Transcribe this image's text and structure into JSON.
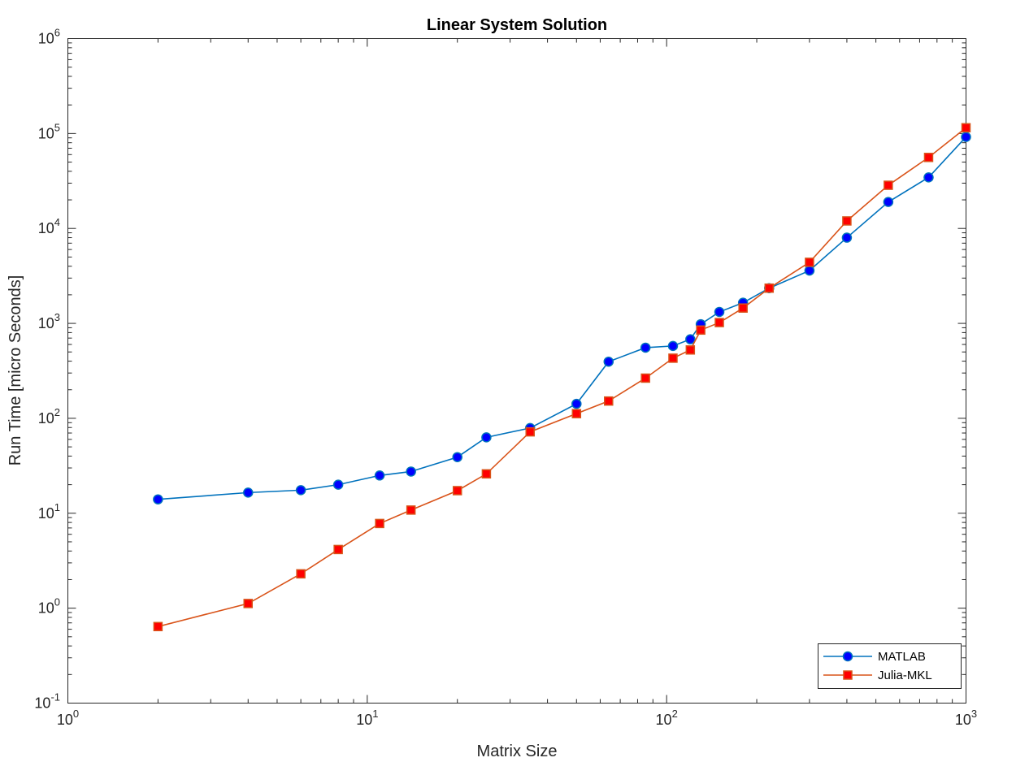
{
  "chart_data": {
    "type": "line",
    "title": "Linear System Solution",
    "xlabel": "Matrix Size",
    "ylabel": "Run Time  [micro Seconds]",
    "xscale": "log",
    "yscale": "log",
    "xlim": [
      1,
      1000
    ],
    "ylim": [
      0.1,
      1000000
    ],
    "x_ticks": [
      {
        "base": "10",
        "exp": "0",
        "value": 1
      },
      {
        "base": "10",
        "exp": "1",
        "value": 10
      },
      {
        "base": "10",
        "exp": "2",
        "value": 100
      },
      {
        "base": "10",
        "exp": "3",
        "value": 1000
      }
    ],
    "y_ticks": [
      {
        "base": "10",
        "exp": "-1",
        "value": 0.1
      },
      {
        "base": "10",
        "exp": "0",
        "value": 1
      },
      {
        "base": "10",
        "exp": "1",
        "value": 10
      },
      {
        "base": "10",
        "exp": "2",
        "value": 100
      },
      {
        "base": "10",
        "exp": "3",
        "value": 1000
      },
      {
        "base": "10",
        "exp": "4",
        "value": 10000
      },
      {
        "base": "10",
        "exp": "5",
        "value": 100000
      },
      {
        "base": "10",
        "exp": "6",
        "value": 1000000
      }
    ],
    "grid": false,
    "legend_position": "bottom-right",
    "series": [
      {
        "name": "MATLAB",
        "color": "#0072BD",
        "marker": "circle",
        "marker_fill": "#0000FF",
        "x": [
          2,
          4,
          6,
          8,
          11,
          14,
          20,
          25,
          35,
          50,
          64,
          85,
          105,
          120,
          130,
          150,
          180,
          220,
          300,
          400,
          550,
          750,
          1000
        ],
        "y": [
          14,
          16.5,
          17.5,
          20,
          25,
          27.5,
          39,
          63,
          79,
          142,
          395,
          555,
          578,
          680,
          980,
          1320,
          1650,
          2350,
          3600,
          8000,
          19000,
          34500,
          92000
        ]
      },
      {
        "name": "Julia-MKL",
        "color": "#D95319",
        "marker": "square",
        "marker_fill": "#FF0000",
        "x": [
          2,
          4,
          6,
          8,
          11,
          14,
          20,
          25,
          35,
          50,
          64,
          85,
          105,
          120,
          130,
          150,
          180,
          220,
          300,
          400,
          550,
          750,
          1000
        ],
        "y": [
          0.64,
          1.12,
          2.3,
          4.15,
          7.8,
          10.8,
          17.3,
          26,
          72,
          112,
          152,
          265,
          430,
          525,
          850,
          1020,
          1450,
          2350,
          4400,
          12000,
          28500,
          56000,
          115000
        ]
      }
    ]
  }
}
